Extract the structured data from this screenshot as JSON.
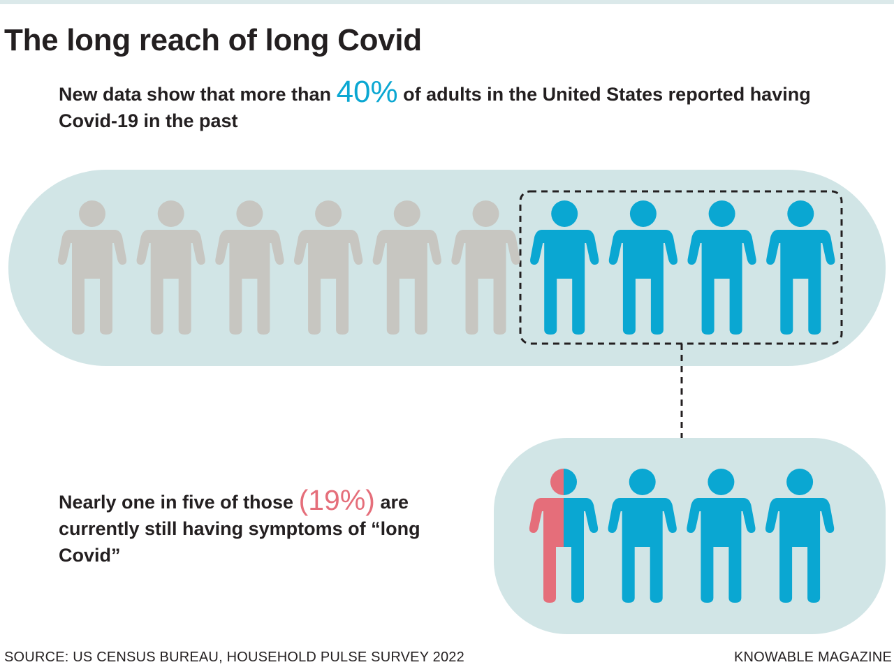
{
  "title": "The long reach of long Covid",
  "subtitle": {
    "before": "New data show that more than ",
    "highlight": "40%",
    "after": " of adults in the United States reported having Covid-19 in the past"
  },
  "note": {
    "before": "Nearly one in five of those ",
    "highlight": "(19%)",
    "after": " are currently still having symptoms of “long Covid”"
  },
  "footer": {
    "source": "SOURCE: US CENSUS BUREAU, HOUSEHOLD PULSE SURVEY 2022",
    "credit": "KNOWABLE MAGAZINE"
  },
  "colors": {
    "panel": "#d1e5e6",
    "icon_gray": "#c7c6c1",
    "icon_blue": "#0aa7d2",
    "icon_red": "#e56e7a",
    "text": "#231f20"
  },
  "chart_data": [
    {
      "type": "pictograph",
      "description_of_units": "adults in the United States",
      "total_icons": 10,
      "highlighted_icons": 4,
      "highlighted_percent": 40,
      "icon_colors": [
        "gray",
        "gray",
        "gray",
        "gray",
        "gray",
        "gray",
        "blue",
        "blue",
        "blue",
        "blue"
      ]
    },
    {
      "type": "pictograph",
      "description_of_units": "adults who reported having had Covid-19",
      "total_icons": 4,
      "highlighted_fraction_of_total": 0.19,
      "highlighted_percent": 19,
      "icon_colors": [
        "red",
        "blue",
        "blue",
        "blue"
      ]
    }
  ]
}
